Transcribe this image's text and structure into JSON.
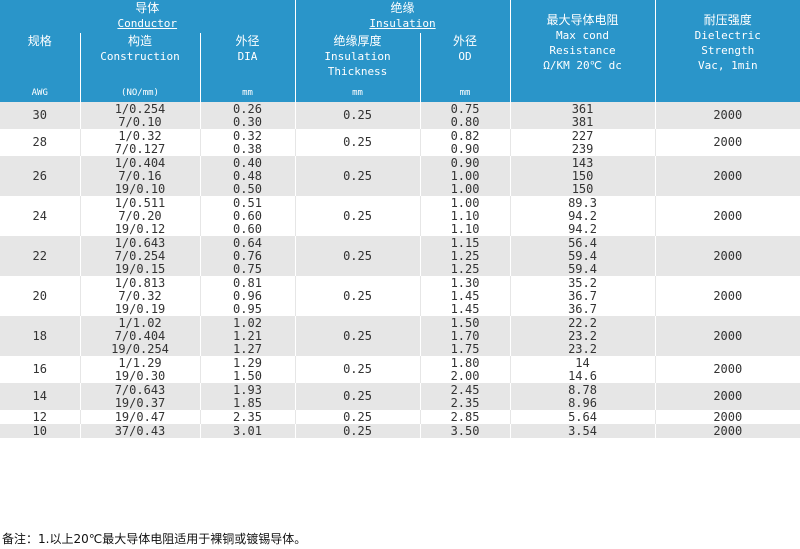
{
  "header": {
    "conductor": {
      "cn": "导体",
      "en": "Conductor"
    },
    "insulation": {
      "cn": "绝缘",
      "en": "Insulation"
    },
    "resistance": {
      "cn": "最大导体电阻",
      "en1": "Max cond",
      "en2": "Resistance",
      "en3": "Ω/KM 20℃ dc"
    },
    "dielectric": {
      "cn": "耐压强度",
      "en1": "Dielectric",
      "en2": "Strength",
      "en3": "Vac, 1min"
    },
    "awg": {
      "cn": "规格",
      "unit": "AWG"
    },
    "construction": {
      "cn": "构造",
      "en": "Construction",
      "unit": "(NO/mm)"
    },
    "dia": {
      "cn": "外径",
      "en": "DIA",
      "unit": "mm"
    },
    "thickness": {
      "cn": "绝缘厚度",
      "en1": "Insulation",
      "en2": "Thickness",
      "unit": "mm"
    },
    "od": {
      "cn": "外径",
      "en": "OD",
      "unit": "mm"
    }
  },
  "rows": [
    {
      "awg": "30",
      "construction": [
        "1/0.254",
        "7/0.10"
      ],
      "dia": [
        "0.26",
        "0.30"
      ],
      "thickness": "0.25",
      "od": [
        "0.75",
        "0.80"
      ],
      "resistance": [
        "361",
        "381"
      ],
      "dielectric": "2000"
    },
    {
      "awg": "28",
      "construction": [
        "1/0.32",
        "7/0.127"
      ],
      "dia": [
        "0.32",
        "0.38"
      ],
      "thickness": "0.25",
      "od": [
        "0.82",
        "0.90"
      ],
      "resistance": [
        "227",
        "239"
      ],
      "dielectric": "2000"
    },
    {
      "awg": "26",
      "construction": [
        "1/0.404",
        "7/0.16",
        "19/0.10"
      ],
      "dia": [
        "0.40",
        "0.48",
        "0.50"
      ],
      "thickness": "0.25",
      "od": [
        "0.90",
        "1.00",
        "1.00"
      ],
      "resistance": [
        "143",
        "150",
        "150"
      ],
      "dielectric": "2000"
    },
    {
      "awg": "24",
      "construction": [
        "1/0.511",
        "7/0.20",
        "19/0.12"
      ],
      "dia": [
        "0.51",
        "0.60",
        "0.60"
      ],
      "thickness": "0.25",
      "od": [
        "1.00",
        "1.10",
        "1.10"
      ],
      "resistance": [
        "89.3",
        "94.2",
        "94.2"
      ],
      "dielectric": "2000"
    },
    {
      "awg": "22",
      "construction": [
        "1/0.643",
        "7/0.254",
        "19/0.15"
      ],
      "dia": [
        "0.64",
        "0.76",
        "0.75"
      ],
      "thickness": "0.25",
      "od": [
        "1.15",
        "1.25",
        "1.25"
      ],
      "resistance": [
        "56.4",
        "59.4",
        "59.4"
      ],
      "dielectric": "2000"
    },
    {
      "awg": "20",
      "construction": [
        "1/0.813",
        "7/0.32",
        "19/0.19"
      ],
      "dia": [
        "0.81",
        "0.96",
        "0.95"
      ],
      "thickness": "0.25",
      "od": [
        "1.30",
        "1.45",
        "1.45"
      ],
      "resistance": [
        "35.2",
        "36.7",
        "36.7"
      ],
      "dielectric": "2000"
    },
    {
      "awg": "18",
      "construction": [
        "1/1.02",
        "7/0.404",
        "19/0.254"
      ],
      "dia": [
        "1.02",
        "1.21",
        "1.27"
      ],
      "thickness": "0.25",
      "od": [
        "1.50",
        "1.70",
        "1.75"
      ],
      "resistance": [
        "22.2",
        "23.2",
        "23.2"
      ],
      "dielectric": "2000"
    },
    {
      "awg": "16",
      "construction": [
        "1/1.29",
        "19/0.30"
      ],
      "dia": [
        "1.29",
        "1.50"
      ],
      "thickness": "0.25",
      "od": [
        "1.80",
        "2.00"
      ],
      "resistance": [
        "14",
        "14.6"
      ],
      "dielectric": "2000"
    },
    {
      "awg": "14",
      "construction": [
        "7/0.643",
        "19/0.37"
      ],
      "dia": [
        "1.93",
        "1.85"
      ],
      "thickness": "0.25",
      "od": [
        "2.45",
        "2.35"
      ],
      "resistance": [
        "8.78",
        "8.96"
      ],
      "dielectric": "2000"
    },
    {
      "awg": "12",
      "construction": [
        "19/0.47"
      ],
      "dia": [
        "2.35"
      ],
      "thickness": "0.25",
      "od": [
        "2.85"
      ],
      "resistance": [
        "5.64"
      ],
      "dielectric": "2000"
    },
    {
      "awg": "10",
      "construction": [
        "37/0.43"
      ],
      "dia": [
        "3.01"
      ],
      "thickness": "0.25",
      "od": [
        "3.50"
      ],
      "resistance": [
        "3.54"
      ],
      "dielectric": "2000"
    }
  ],
  "note": "备注：1.以上20℃最大导体电阻适用于裸铜或镀锡导体。",
  "colors": {
    "header_bg": "#2a95c9",
    "row_gray": "#e6e6e6",
    "row_white": "#ffffff"
  }
}
